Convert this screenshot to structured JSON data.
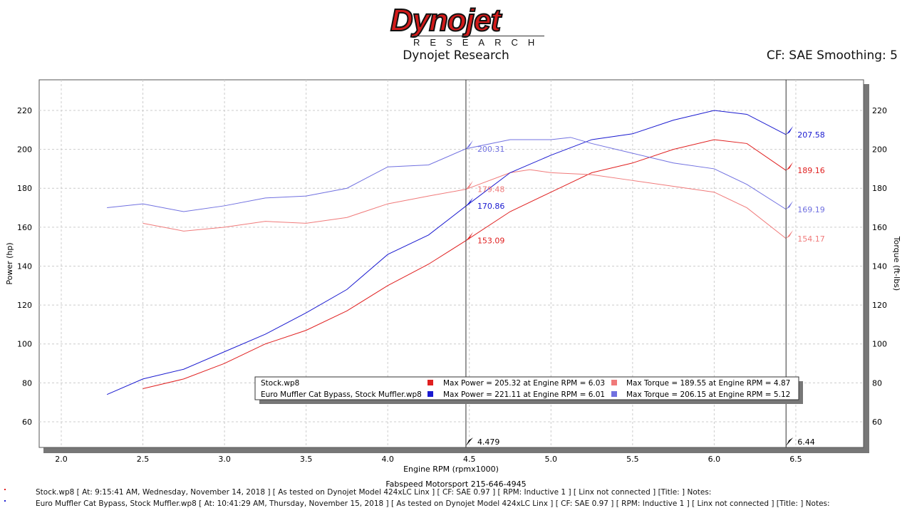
{
  "header": {
    "logo_text": "Dynojet",
    "logo_sub": "RESEARCH",
    "title": "Dynojet Research",
    "cf_text": "CF: SAE Smoothing: 5"
  },
  "footer": {
    "shop": "Fabspeed Motorsport 215-646-4945",
    "notes": [
      "Stock.wp8 [ At: 9:15:41 AM, Wednesday, November 14, 2018 ] [ As tested on Dynojet Model 424xLC Linx ] [ CF: SAE 0.97 ] [ RPM: Inductive 1 ] [ Linx not connected ] [Title: ]  Notes:",
      "Euro Muffler Cat Bypass, Stock Muffler.wp8 [ At: 10:41:29 AM, Thursday, November 15, 2018 ] [ As tested on Dynojet Model 424xLC Linx ] [ CF: SAE 0.97 ] [ RPM: Inductive 1 ] [ Linx not connected ] [Title: ]  Notes:"
    ]
  },
  "chart_data": {
    "type": "line",
    "xlabel": "Engine RPM (rpmx1000)",
    "ylabel": "Power (hp)",
    "y2label": "Torque (ft-lbs)",
    "xlim": [
      1.87,
      6.91
    ],
    "ylim": [
      49,
      236
    ],
    "xticks": [
      "2.0",
      "2.5",
      "3.0",
      "3.5",
      "4.0",
      "4.5",
      "5.0",
      "5.5",
      "6.0",
      "6.5"
    ],
    "yticks": [
      "60",
      "80",
      "100",
      "120",
      "140",
      "160",
      "180",
      "200",
      "220"
    ],
    "grid": true,
    "cursors": [
      {
        "x": 4.479,
        "label": "4.479"
      },
      {
        "x": 6.44,
        "label": "6.44"
      }
    ],
    "series": [
      {
        "name": "Stock.wp8 Power",
        "color": "#e02020",
        "x": [
          2.5,
          2.75,
          3.0,
          3.25,
          3.5,
          3.75,
          4.0,
          4.25,
          4.479,
          4.75,
          5.0,
          5.25,
          5.5,
          5.75,
          6.0,
          6.2,
          6.44
        ],
        "y": [
          77,
          82,
          90,
          100,
          107,
          117,
          130,
          141,
          153.09,
          168,
          178,
          188,
          193,
          200,
          205,
          203,
          189.16
        ],
        "cursor_labels": [
          "153.09",
          "189.16"
        ]
      },
      {
        "name": "Stock.wp8 Torque",
        "color": "#f07a7a",
        "x": [
          2.5,
          2.75,
          3.0,
          3.25,
          3.5,
          3.75,
          4.0,
          4.25,
          4.479,
          4.75,
          4.87,
          5.0,
          5.25,
          5.5,
          5.75,
          6.0,
          6.2,
          6.44
        ],
        "y": [
          162,
          158,
          160,
          163,
          162,
          165,
          172,
          176,
          179.48,
          188,
          189.55,
          188,
          187,
          184,
          181,
          178,
          170,
          154.17
        ],
        "cursor_labels": [
          "179.48",
          "154.17"
        ]
      },
      {
        "name": "Euro Muffler Cat Bypass, Stock Muffler.wp8 Power",
        "color": "#1a1ad0",
        "x": [
          2.28,
          2.5,
          2.75,
          3.0,
          3.25,
          3.5,
          3.75,
          4.0,
          4.25,
          4.479,
          4.75,
          5.0,
          5.25,
          5.5,
          5.75,
          6.0,
          6.2,
          6.44
        ],
        "y": [
          74,
          82,
          87,
          96,
          105,
          116,
          128,
          146,
          156,
          170.86,
          188,
          197,
          205,
          208,
          215,
          220,
          218,
          207.58
        ],
        "cursor_labels": [
          "170.86",
          "207.58"
        ]
      },
      {
        "name": "Euro Muffler Cat Bypass, Stock Muffler.wp8 Torque",
        "color": "#7070e0",
        "x": [
          2.28,
          2.5,
          2.75,
          3.0,
          3.25,
          3.5,
          3.75,
          4.0,
          4.25,
          4.479,
          4.75,
          5.0,
          5.12,
          5.25,
          5.5,
          5.75,
          6.0,
          6.2,
          6.44
        ],
        "y": [
          170,
          172,
          168,
          171,
          175,
          176,
          180,
          191,
          192,
          200.31,
          205,
          205,
          206.15,
          203,
          198,
          193,
          190,
          182,
          169.19
        ],
        "cursor_labels": [
          "200.31",
          "169.19"
        ]
      }
    ],
    "legend": {
      "placement": "bottom-center",
      "rows": [
        {
          "file": "Stock.wp8",
          "power": "Max Power = 205.32 at Engine RPM = 6.03",
          "torque": "Max Torque = 189.55 at Engine RPM = 4.87",
          "pc": "#e02020",
          "tc": "#f07a7a"
        },
        {
          "file": "Euro Muffler Cat Bypass, Stock Muffler.wp8",
          "power": "Max Power = 221.11 at Engine RPM = 6.01",
          "torque": "Max Torque = 206.15 at Engine RPM = 5.12",
          "pc": "#1a1ad0",
          "tc": "#7070e0"
        }
      ]
    }
  }
}
